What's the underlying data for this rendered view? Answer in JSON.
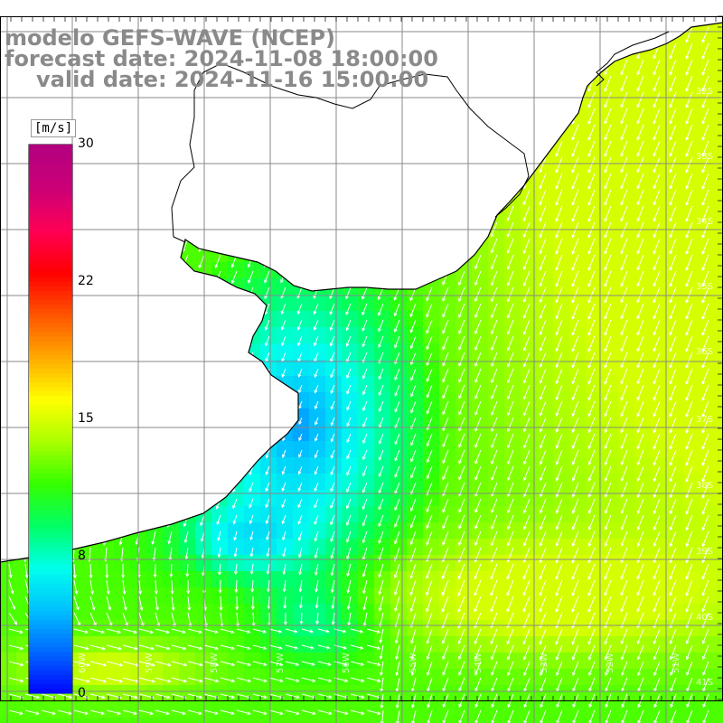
{
  "titles": {
    "line1": "modelo GEFS-WAVE (NCEP)",
    "line2": "forecast date: 2024-11-08 18:00:00",
    "line3": "valid date: 2024-11-16 15:00:00"
  },
  "colorbar": {
    "unit": "[m/s]",
    "ticks": [
      "30",
      "22",
      "15",
      "8",
      "0"
    ],
    "tick_values": [
      30,
      22,
      15,
      8,
      0
    ],
    "min": 0,
    "max": 30,
    "colors": [
      "#0000ff",
      "#0066ff",
      "#00bfff",
      "#00ffee",
      "#00ff66",
      "#33ff00",
      "#aaff00",
      "#ffff00",
      "#ffaa00",
      "#ff5500",
      "#ff0000",
      "#ff0055",
      "#cc0077",
      "#b30080"
    ]
  },
  "map": {
    "variable": "wind speed with direction arrows",
    "land_color": "#ffffff",
    "grid_color": "#888888",
    "lat_labels": [
      "32S",
      "33S",
      "34S",
      "35S",
      "36S",
      "37S",
      "38S",
      "39S",
      "40S",
      "41S"
    ],
    "lon_labels": [
      "60W",
      "59W",
      "58W",
      "57W",
      "56W",
      "55W",
      "54W",
      "53W",
      "52W",
      "51W"
    ]
  }
}
